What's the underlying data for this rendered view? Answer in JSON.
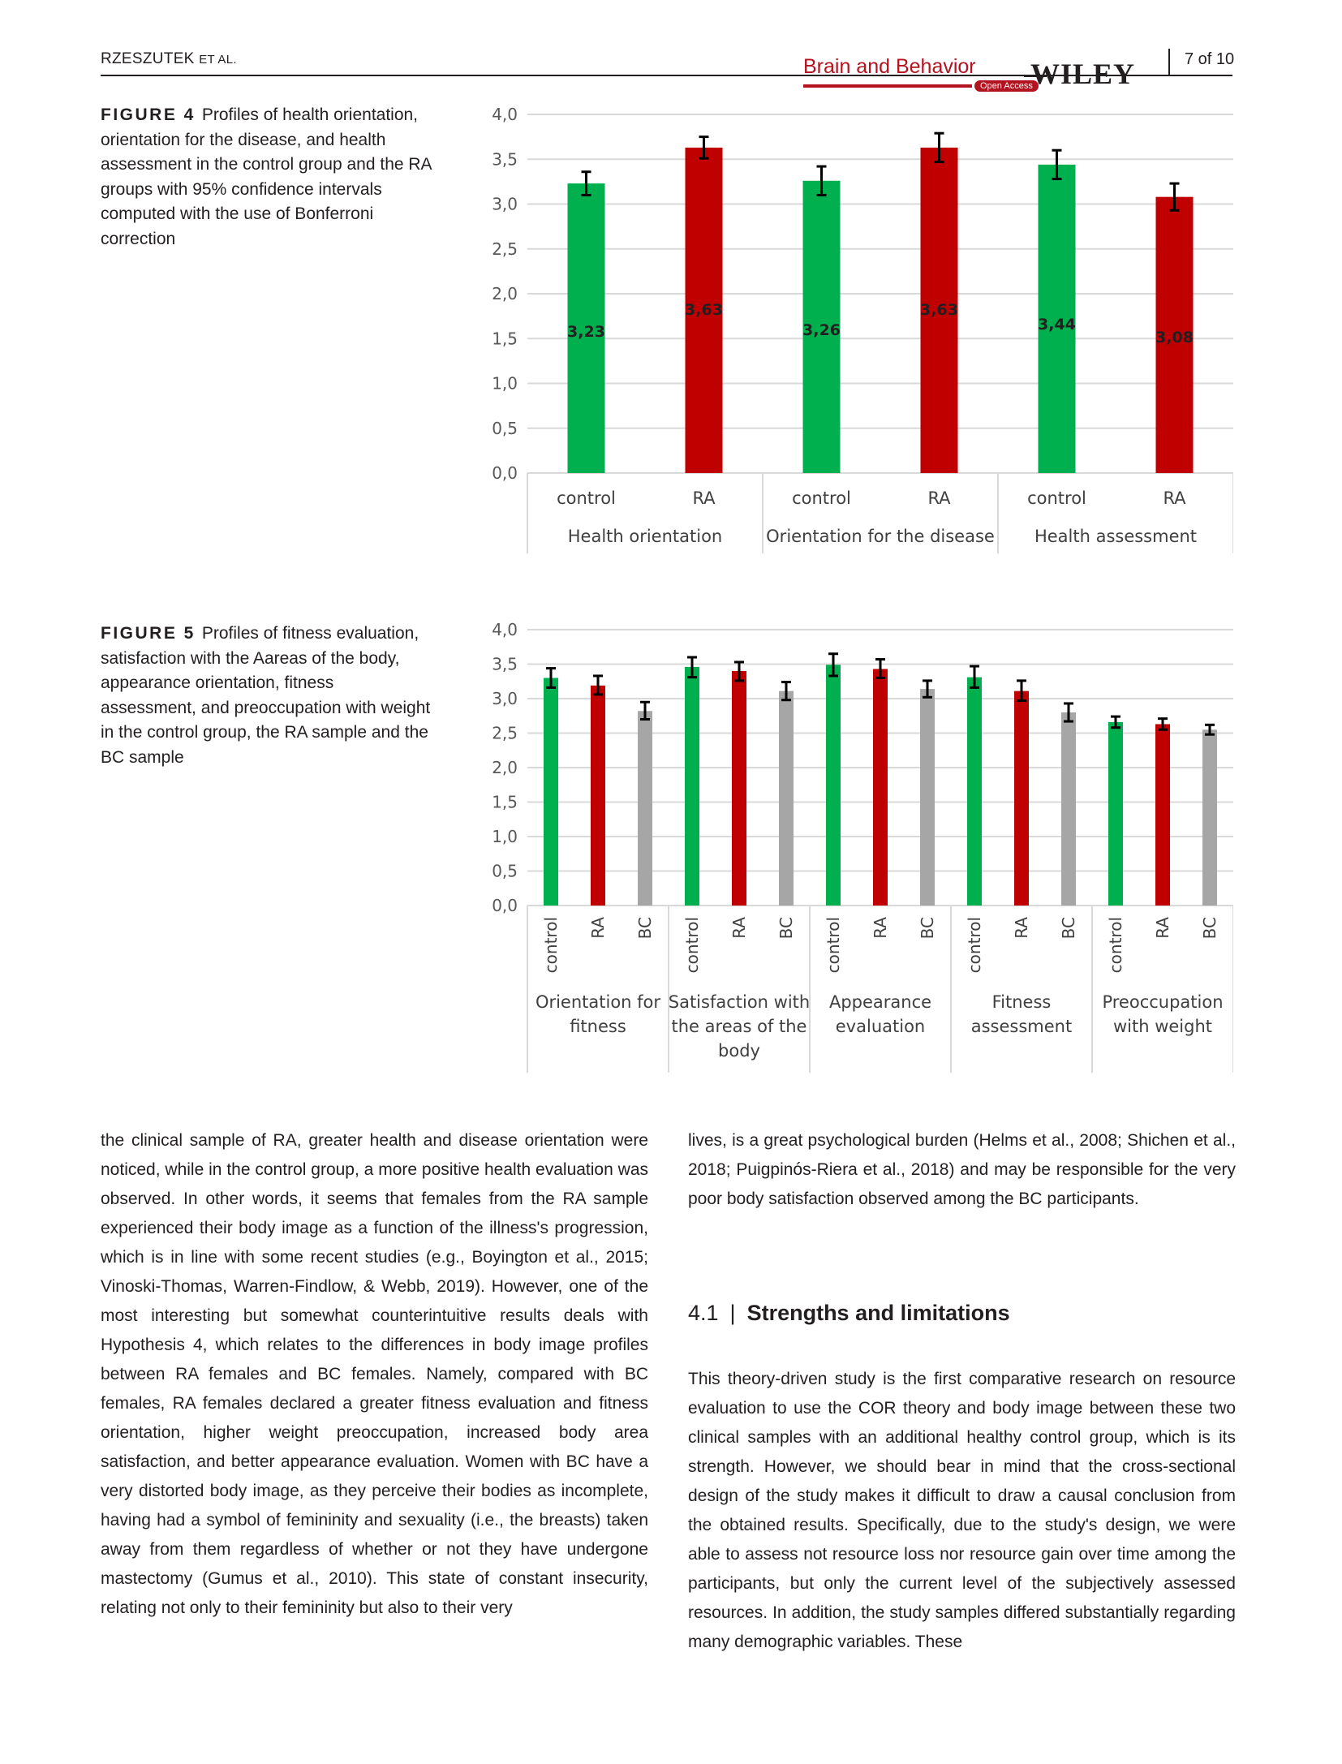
{
  "header": {
    "author": "RZESZUTEK",
    "author_suffix": "ET AL.",
    "journal": "Brain and Behavior",
    "open_access": "Open Access",
    "publisher": "WILEY",
    "page": "7 of 10"
  },
  "figure4": {
    "label": "FIGURE 4",
    "caption": "Profiles of health orientation, orientation for the disease, and health assessment in the control group and the RA groups with 95% confidence intervals computed with the use of Bonferroni correction"
  },
  "figure5": {
    "label": "FIGURE 5",
    "caption": "Profiles of fitness evaluation, satisfaction with the Aareas of the body, appearance orientation, fitness assessment, and preoccupation with weight in the control group, the RA sample and the BC sample"
  },
  "chart_data": [
    {
      "type": "bar",
      "title": "",
      "ylim": [
        0,
        4
      ],
      "yticks": [
        "0,0",
        "0,5",
        "1,0",
        "1,5",
        "2,0",
        "2,5",
        "3,0",
        "3,5",
        "4,0"
      ],
      "grid": true,
      "groups": [
        "Health orientation",
        "Orientation for the disease",
        "Health assessment"
      ],
      "bars": [
        {
          "group": 0,
          "label": "control",
          "value": 3.23,
          "text": "3,23",
          "err": [
            3.1,
            3.36
          ],
          "color": "#00b04f"
        },
        {
          "group": 0,
          "label": "RA",
          "value": 3.63,
          "text": "3,63",
          "err": [
            3.51,
            3.75
          ],
          "color": "#c00000"
        },
        {
          "group": 1,
          "label": "control",
          "value": 3.26,
          "text": "3,26",
          "err": [
            3.1,
            3.42
          ],
          "color": "#00b04f"
        },
        {
          "group": 1,
          "label": "RA",
          "value": 3.63,
          "text": "3,63",
          "err": [
            3.47,
            3.79
          ],
          "color": "#c00000"
        },
        {
          "group": 2,
          "label": "control",
          "value": 3.44,
          "text": "3,44",
          "err": [
            3.28,
            3.6
          ],
          "color": "#00b04f"
        },
        {
          "group": 2,
          "label": "RA",
          "value": 3.08,
          "text": "3,08",
          "err": [
            2.93,
            3.23
          ],
          "color": "#c00000"
        }
      ]
    },
    {
      "type": "bar",
      "title": "",
      "ylim": [
        0,
        4
      ],
      "yticks": [
        "0,0",
        "0,5",
        "1,0",
        "1,5",
        "2,0",
        "2,5",
        "3,0",
        "3,5",
        "4,0"
      ],
      "grid": true,
      "groups": [
        [
          "Orientation for",
          "fitness"
        ],
        [
          "Satisfaction with",
          "the areas of the",
          "body"
        ],
        [
          "Appearance",
          "evaluation"
        ],
        [
          "Fitness",
          "assessment"
        ],
        [
          "Preoccupation",
          "with weight"
        ]
      ],
      "bars": [
        {
          "group": 0,
          "label": "control",
          "value": 3.3,
          "err": [
            3.16,
            3.44
          ],
          "color": "#00b04f"
        },
        {
          "group": 0,
          "label": "RA",
          "value": 3.19,
          "err": [
            3.06,
            3.33
          ],
          "color": "#c00000"
        },
        {
          "group": 0,
          "label": "BC",
          "value": 2.82,
          "err": [
            2.7,
            2.95
          ],
          "color": "#a6a6a6"
        },
        {
          "group": 1,
          "label": "control",
          "value": 3.46,
          "err": [
            3.31,
            3.6
          ],
          "color": "#00b04f"
        },
        {
          "group": 1,
          "label": "RA",
          "value": 3.4,
          "err": [
            3.26,
            3.53
          ],
          "color": "#c00000"
        },
        {
          "group": 1,
          "label": "BC",
          "value": 3.11,
          "err": [
            2.98,
            3.24
          ],
          "color": "#a6a6a6"
        },
        {
          "group": 2,
          "label": "control",
          "value": 3.49,
          "err": [
            3.33,
            3.65
          ],
          "color": "#00b04f"
        },
        {
          "group": 2,
          "label": "RA",
          "value": 3.43,
          "err": [
            3.3,
            3.57
          ],
          "color": "#c00000"
        },
        {
          "group": 2,
          "label": "BC",
          "value": 3.14,
          "err": [
            3.02,
            3.26
          ],
          "color": "#a6a6a6"
        },
        {
          "group": 3,
          "label": "control",
          "value": 3.31,
          "err": [
            3.16,
            3.47
          ],
          "color": "#00b04f"
        },
        {
          "group": 3,
          "label": "RA",
          "value": 3.11,
          "err": [
            2.97,
            3.26
          ],
          "color": "#c00000"
        },
        {
          "group": 3,
          "label": "BC",
          "value": 2.8,
          "err": [
            2.67,
            2.93
          ],
          "color": "#a6a6a6"
        },
        {
          "group": 4,
          "label": "control",
          "value": 2.66,
          "err": [
            2.58,
            2.74
          ],
          "color": "#00b04f"
        },
        {
          "group": 4,
          "label": "RA",
          "value": 2.63,
          "err": [
            2.55,
            2.71
          ],
          "color": "#c00000"
        },
        {
          "group": 4,
          "label": "BC",
          "value": 2.55,
          "err": [
            2.48,
            2.62
          ],
          "color": "#a6a6a6"
        }
      ]
    }
  ],
  "body": {
    "left_paragraph": "the clinical sample of RA, greater health and disease orientation were noticed, while in the control group, a more positive health evaluation was observed. In other words, it seems that females from the RA sample experienced their body image as a function of the illness's progression, which is in line with some recent studies (e.g., Boyington et al., 2015; Vinoski-Thomas, Warren-Findlow, & Webb, 2019). However, one of the most interesting but somewhat counterintuitive results deals with Hypothesis 4, which relates to the differences in body image profiles between RA females and BC females. Namely, compared with BC females, RA females de­clared a greater fitness evaluation and fitness orientation, higher weight preoccupation, increased body area satisfaction, and bet­ter appearance evaluation. Women with BC have a very distorted body image, as they perceive their bodies as incomplete, having had a symbol of femininity and sexuality (i.e., the breasts) taken away from them regardless of whether or not they have under­gone mastectomy (Gumus et al., 2010). This state of constant in­security, relating not only to their femininity but also to their very",
    "right_paragraph_1": "lives, is a great psychological burden (Helms et al., 2008; Shichen et al., 2018; Puigpinós-Riera et al., 2018) and may be responsi­ble for the very poor body satisfaction observed among the BC participants.",
    "section_number": "4.1",
    "section_title": "Strengths and limitations",
    "right_paragraph_2": "This theory-driven study is the first comparative research on re­source evaluation to use the COR theory and body image between these two clinical samples with an additional healthy control group, which is its strength. However, we should bear in mind that the cross-sectional design of the study makes it difficult to draw a causal conclusion from the obtained results. Specifically, due to the study's design, we were able to assess not resource loss nor resource gain over time among the participants, but only the current level of the subjectively assessed resources. In addition, the study samples dif­fered substantially regarding many demographic variables. These"
  }
}
